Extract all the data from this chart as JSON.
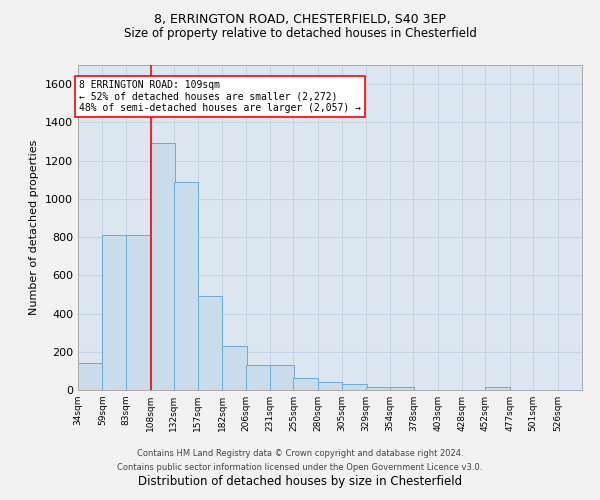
{
  "title1": "8, ERRINGTON ROAD, CHESTERFIELD, S40 3EP",
  "title2": "Size of property relative to detached houses in Chesterfield",
  "xlabel": "Distribution of detached houses by size in Chesterfield",
  "ylabel": "Number of detached properties",
  "footer1": "Contains HM Land Registry data © Crown copyright and database right 2024.",
  "footer2": "Contains public sector information licensed under the Open Government Licence v3.0.",
  "annotation_line1": "8 ERRINGTON ROAD: 109sqm",
  "annotation_line2": "← 52% of detached houses are smaller (2,272)",
  "annotation_line3": "48% of semi-detached houses are larger (2,057) →",
  "bar_color": "#c9dcea",
  "bar_edge_color": "#6aaad4",
  "red_line_x": 109,
  "categories": [
    "34sqm",
    "59sqm",
    "83sqm",
    "108sqm",
    "132sqm",
    "157sqm",
    "182sqm",
    "206sqm",
    "231sqm",
    "255sqm",
    "280sqm",
    "305sqm",
    "329sqm",
    "354sqm",
    "378sqm",
    "403sqm",
    "428sqm",
    "452sqm",
    "477sqm",
    "501sqm",
    "526sqm"
  ],
  "bin_edges": [
    34,
    59,
    83,
    108,
    132,
    157,
    182,
    206,
    231,
    255,
    280,
    305,
    329,
    354,
    378,
    403,
    428,
    452,
    477,
    501,
    526,
    551
  ],
  "values": [
    140,
    810,
    810,
    1290,
    1090,
    490,
    230,
    130,
    130,
    65,
    40,
    30,
    15,
    15,
    0,
    0,
    0,
    15,
    0,
    0,
    0
  ],
  "ylim": [
    0,
    1700
  ],
  "yticks": [
    0,
    200,
    400,
    600,
    800,
    1000,
    1200,
    1400,
    1600
  ],
  "grid_color": "#c8d4e5",
  "axes_background": "#dce6f0",
  "fig_background": "#f2f2f2"
}
